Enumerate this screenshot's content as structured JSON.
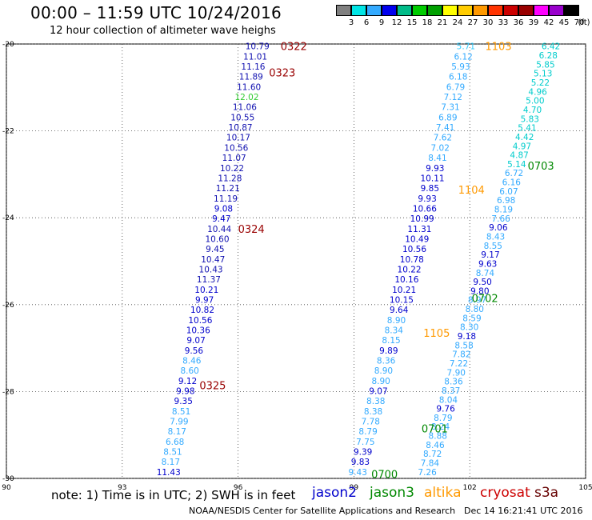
{
  "title": "00:00 – 11:59 UTC 10/24/2016",
  "subtitle": "12 hour collection of altimeter wave heighs",
  "note": "note: 1) Time is in UTC; 2) SWH is in feet",
  "credit": "NOAA/NESDIS Center for Satellite Applications and Research",
  "timestamp": "Dec 14 16:21:41 UTC 2016",
  "satellites": [
    {
      "name": "jason2",
      "color": "#0000cc"
    },
    {
      "name": "jason3",
      "color": "#008800"
    },
    {
      "name": "altika",
      "color": "#ff9900"
    },
    {
      "name": "cryosat",
      "color": "#cc0000"
    },
    {
      "name": "s3a",
      "color": "#660000"
    }
  ],
  "legend": {
    "unit": "(ft)",
    "colors": [
      "#808080",
      "#00e5e5",
      "#33aaff",
      "#0000ee",
      "#00bb88",
      "#00cc00",
      "#00a000",
      "#ffff00",
      "#ffcc00",
      "#ff9900",
      "#ff3300",
      "#cc0000",
      "#990000",
      "#ff00ff",
      "#9900cc",
      "#000000"
    ],
    "labels": [
      "3",
      "6",
      "9",
      "12",
      "15",
      "18",
      "21",
      "24",
      "27",
      "30",
      "33",
      "36",
      "39",
      "42",
      "45",
      "70"
    ]
  },
  "map": {
    "x_ticks": [
      "90",
      "93",
      "96",
      "99",
      "102",
      "105"
    ],
    "y_ticks": [
      "-20",
      "-22",
      "-24",
      "-26",
      "-28",
      "-30"
    ],
    "lon_range": [
      90,
      105
    ],
    "lat_range": [
      -30,
      -20
    ]
  },
  "tracks": [
    {
      "id": "track-jason2",
      "color": "#1010b0",
      "lon_start": 96.5,
      "lon_end": 94.2,
      "values": [
        "10.79",
        "11.01",
        "11.16",
        "11.89",
        "11.60",
        "12.02",
        "11.06",
        "10.55",
        "10.87",
        "10.17",
        "10.56",
        "11.07",
        "10.22",
        "11.28",
        "11.21",
        "11.19",
        "9.08",
        "9.47",
        "10.44",
        "10.60",
        "9.45",
        "10.47",
        "10.43",
        "11.37",
        "10.21",
        "9.97",
        "10.82",
        "10.56",
        "10.36",
        "9.07",
        "9.56",
        "8.46",
        "8.60",
        "9.12",
        "9.98",
        "9.35",
        "8.51",
        "7.99",
        "8.17",
        "6.68",
        "8.51",
        "8.17",
        "11.43"
      ],
      "value_colors": {
        "5": "#33cc33",
        "16": "#0000cc",
        "17": "#0000cc",
        "24": "#0000cc",
        "25": "#0000cc",
        "26": "#0000cc",
        "27": "#0000cc",
        "28": "#0000cc",
        "29": "#0000cc",
        "30": "#0000cc",
        "31": "#33aaff",
        "32": "#33aaff",
        "33": "#0000cc",
        "34": "#0000cc",
        "35": "#0000cc",
        "36": "#33aaff",
        "37": "#33aaff",
        "38": "#33aaff",
        "39": "#33aaff",
        "40": "#33aaff",
        "41": "#33aaff",
        "42": "#0000cc"
      }
    },
    {
      "id": "track-mid",
      "color": "#1010b0",
      "lon_start": 101.9,
      "lon_end": 99.1,
      "values": [
        "5.71",
        "6.12",
        "5.93",
        "6.18",
        "6.79",
        "7.12",
        "7.31",
        "6.89",
        "7.41",
        "7.62",
        "7.02",
        "8.41",
        "9.93",
        "10.11",
        "9.85",
        "9.93",
        "10.66",
        "10.99",
        "11.31",
        "10.49",
        "10.56",
        "10.78",
        "10.22",
        "10.16",
        "10.21",
        "10.15",
        "9.64",
        "8.90",
        "8.34",
        "8.15",
        "9.89",
        "8.36",
        "8.90",
        "8.90",
        "9.07",
        "8.38",
        "8.38",
        "7.78",
        "8.79",
        "7.75",
        "9.39",
        "9.83",
        "9.43"
      ],
      "value_colors": {
        "0": "#33ccff",
        "1": "#33aaff",
        "2": "#33aaff",
        "3": "#33aaff",
        "4": "#33aaff",
        "5": "#33aaff",
        "6": "#33aaff",
        "7": "#33aaff",
        "8": "#33aaff",
        "9": "#33aaff",
        "10": "#33aaff",
        "11": "#33aaff",
        "12": "#0000cc",
        "13": "#0000cc",
        "14": "#0000cc",
        "15": "#0000cc",
        "16": "#0000cc",
        "17": "#0000cc",
        "18": "#0000cc",
        "19": "#0000cc",
        "20": "#0000cc",
        "21": "#0000cc",
        "22": "#0000cc",
        "23": "#0000cc",
        "24": "#0000cc",
        "25": "#0000cc",
        "26": "#0000cc",
        "27": "#33aaff",
        "28": "#33aaff",
        "29": "#33aaff",
        "30": "#0000cc",
        "31": "#33aaff",
        "32": "#33aaff",
        "33": "#33aaff",
        "34": "#0000cc",
        "35": "#33aaff",
        "36": "#33aaff",
        "37": "#33aaff",
        "38": "#33aaff",
        "39": "#33aaff",
        "40": "#0000cc",
        "41": "#0000cc",
        "42": "#33aaff"
      }
    },
    {
      "id": "track-right",
      "color": "#33aaff",
      "lon_start": 104.1,
      "lon_end": 100.9,
      "values": [
        "6.42",
        "6.28",
        "5.85",
        "5.13",
        "5.22",
        "4.96",
        "5.00",
        "4.70",
        "5.83",
        "5.41",
        "4.42",
        "4.97",
        "4.87",
        "5.14",
        "6.72",
        "6.16",
        "6.07",
        "6.98",
        "8.19",
        "7.66",
        "9.06",
        "8.43",
        "8.55",
        "9.17",
        "9.63",
        "8.74",
        "9.50",
        "9.80",
        "8.97",
        "8.80",
        "8.59",
        "8.30",
        "9.18",
        "8.58",
        "7.82",
        "7.22",
        "7.90",
        "8.36",
        "8.37",
        "8.04",
        "9.76",
        "8.79",
        "8.24",
        "8.88",
        "8.46",
        "8.72",
        "7.84",
        "7.26"
      ],
      "value_colors": {
        "0": "#00cccc",
        "1": "#00cccc",
        "2": "#00cccc",
        "3": "#00cccc",
        "4": "#00cccc",
        "5": "#00cccc",
        "6": "#00cccc",
        "7": "#00cccc",
        "8": "#00cccc",
        "9": "#00cccc",
        "10": "#00cccc",
        "11": "#00cccc",
        "12": "#00cccc",
        "13": "#00cccc",
        "14": "#33aaff",
        "15": "#33aaff",
        "16": "#33aaff",
        "17": "#33aaff",
        "18": "#33aaff",
        "19": "#33aaff",
        "20": "#0000cc",
        "23": "#0000cc",
        "24": "#0000cc",
        "26": "#0000cc",
        "27": "#0000cc",
        "32": "#0000cc",
        "40": "#0000cc"
      }
    }
  ],
  "cycle_labels": [
    {
      "text": "0322",
      "color": "#990000",
      "lon": 97.1,
      "lat": -20.05
    },
    {
      "text": "0323",
      "color": "#990000",
      "lon": 96.8,
      "lat": -20.65
    },
    {
      "text": "0324",
      "color": "#990000",
      "lon": 96.0,
      "lat": -24.25
    },
    {
      "text": "0325",
      "color": "#990000",
      "lon": 95.0,
      "lat": -27.85
    },
    {
      "text": "1103",
      "color": "#ff9900",
      "lon": 102.4,
      "lat": -20.05
    },
    {
      "text": "1104",
      "color": "#ff9900",
      "lon": 101.7,
      "lat": -23.35
    },
    {
      "text": "1105",
      "color": "#ff9900",
      "lon": 100.8,
      "lat": -26.65
    },
    {
      "text": "0703",
      "color": "#008800",
      "lon": 103.5,
      "lat": -22.8
    },
    {
      "text": "0702",
      "color": "#008800",
      "lon": 102.05,
      "lat": -25.85
    },
    {
      "text": "0701",
      "color": "#008800",
      "lon": 100.75,
      "lat": -28.85
    },
    {
      "text": "0700",
      "color": "#008800",
      "lon": 99.45,
      "lat": -29.9
    }
  ]
}
